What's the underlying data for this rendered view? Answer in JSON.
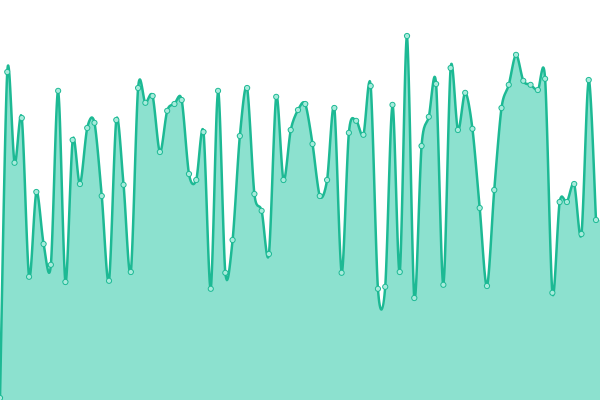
{
  "chart_data": {
    "type": "area",
    "values": [
      0.5,
      82,
      59.3,
      70.5,
      30.8,
      52,
      39,
      33.8,
      77.3,
      29.5,
      65,
      54,
      68,
      69.3,
      51,
      29.8,
      70,
      53.8,
      32,
      78,
      74.3,
      76,
      62,
      72.3,
      74,
      75,
      56.5,
      55,
      67,
      27.8,
      77.3,
      31.8,
      40,
      66,
      78,
      51.5,
      47.3,
      36.5,
      75.8,
      55,
      67.5,
      72.5,
      74,
      64,
      51,
      55,
      73,
      31.8,
      66.8,
      69.8,
      66.3,
      78.5,
      27.8,
      28.3,
      73.8,
      32,
      91,
      25.5,
      63.5,
      70.8,
      79,
      28.8,
      83,
      67.5,
      76.8,
      67.8,
      48,
      28.5,
      52.5,
      73,
      78.8,
      86.3,
      79.8,
      78.8,
      77.5,
      80.3,
      26.8,
      49.5,
      49.5,
      54,
      41.5,
      80,
      45
    ],
    "ylim": [
      0,
      100
    ],
    "color": "#1db994",
    "fill": "#8ce1cf",
    "marker_fill": "#a8ebdc"
  }
}
